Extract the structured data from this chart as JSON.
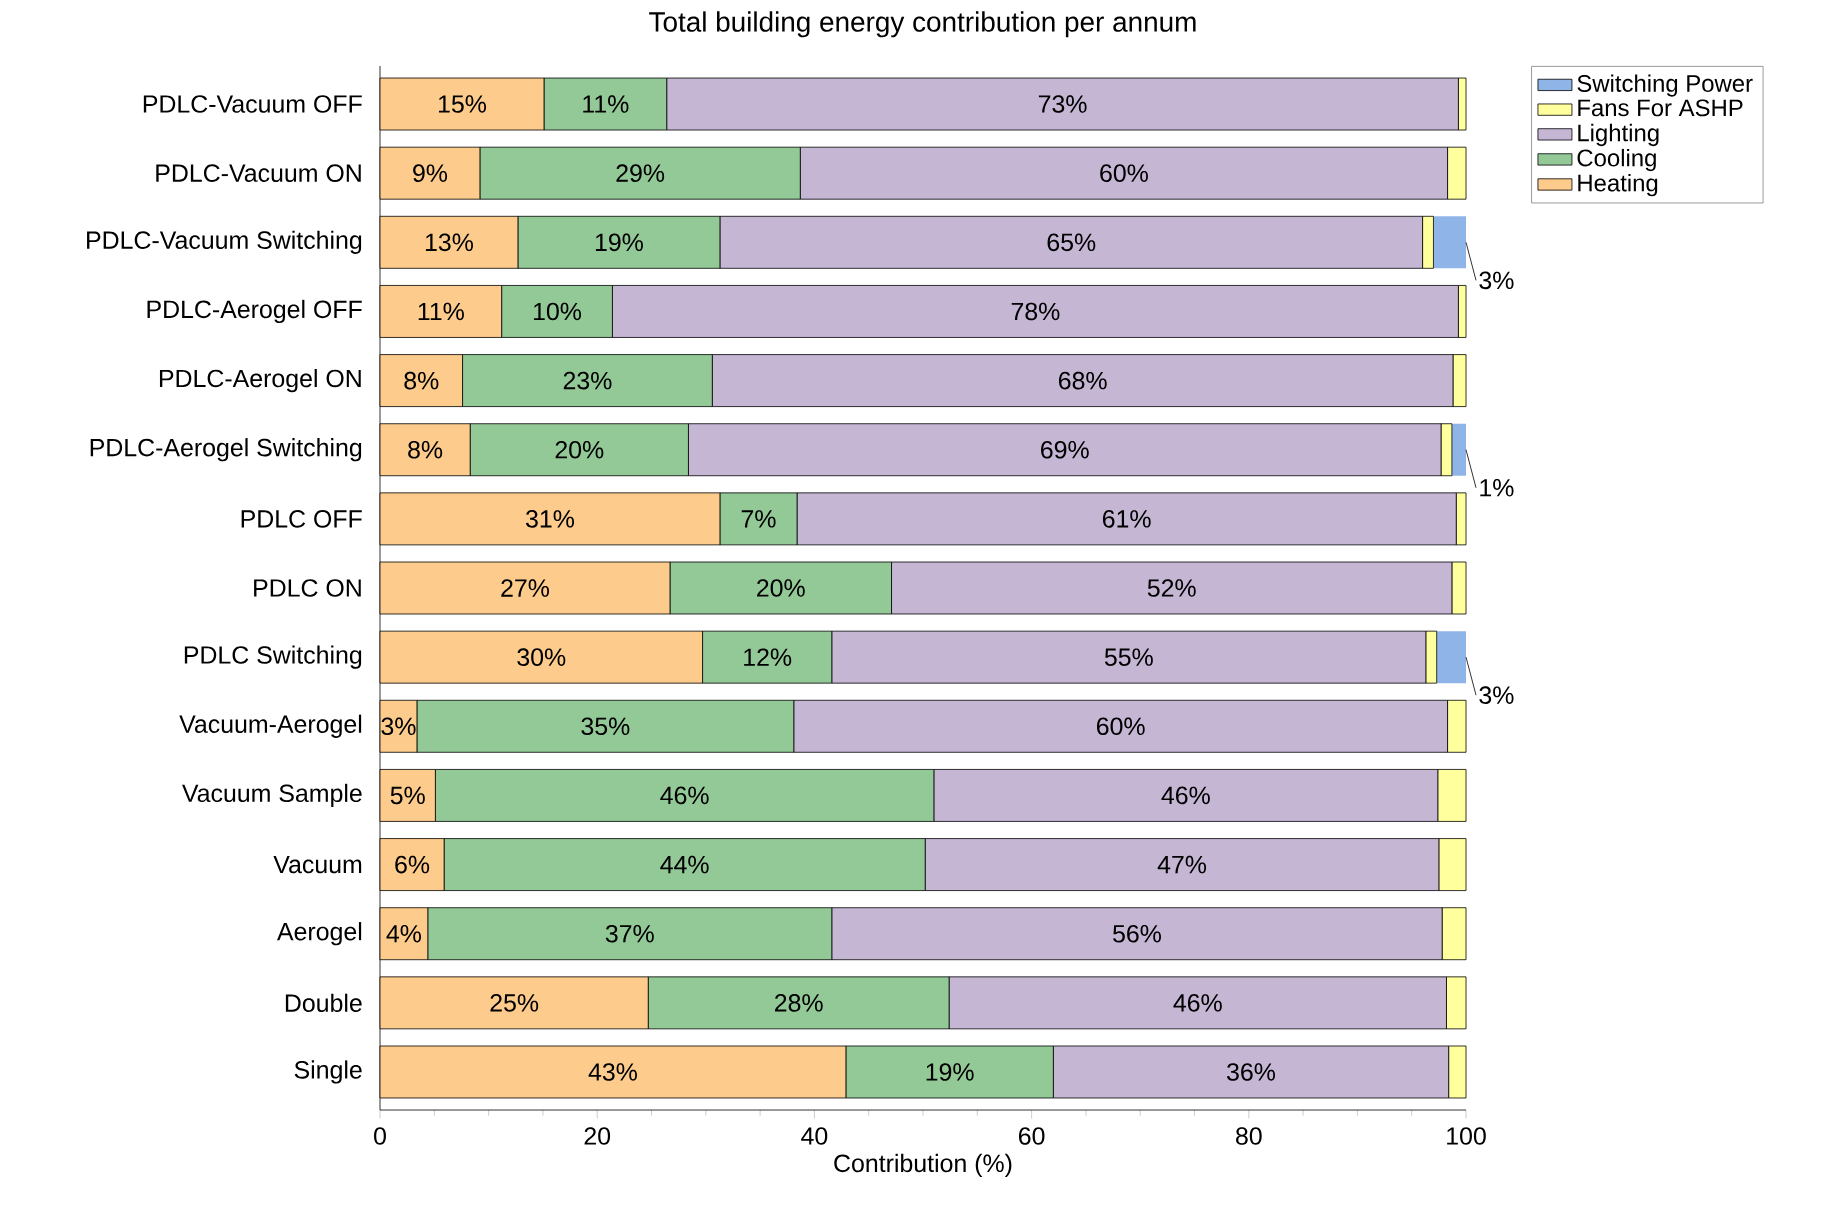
{
  "chart_data": {
    "type": "bar",
    "orientation": "horizontal",
    "stacked": true,
    "title": "Total building energy contribution per annum",
    "xlabel": "Contribution (%)",
    "categories": [
      "PDLC-Vacuum OFF",
      "PDLC-Vacuum ON",
      "PDLC-Vacuum Switching",
      "PDLC-Aerogel OFF",
      "PDLC-Aerogel ON",
      "PDLC-Aerogel Switching",
      "PDLC OFF",
      "PDLC ON",
      "PDLC Switching",
      "Vacuum-Aerogel",
      "Vacuum Sample",
      "Vacuum",
      "Aerogel",
      "Double",
      "Single"
    ],
    "series": [
      {
        "name": "Heating",
        "color": "#fdcb8c",
        "values": [
          15.1,
          9.2,
          12.7,
          11.2,
          7.6,
          8.3,
          31.3,
          26.7,
          29.7,
          3.4,
          5.1,
          5.9,
          4.4,
          24.7,
          42.9
        ],
        "value_labels": [
          "15%",
          "9%",
          "13%",
          "11%",
          "8%",
          "8%",
          "31%",
          "27%",
          "30%",
          "3%",
          "5%",
          "6%",
          "4%",
          "25%",
          "43%"
        ]
      },
      {
        "name": "Cooling",
        "color": "#93c897",
        "values": [
          11.3,
          29.5,
          18.6,
          10.2,
          23.0,
          20.1,
          7.1,
          20.4,
          11.9,
          34.7,
          45.9,
          44.3,
          37.2,
          27.7,
          19.1
        ],
        "value_labels": [
          "11%",
          "29%",
          "19%",
          "10%",
          "23%",
          "20%",
          "7%",
          "20%",
          "12%",
          "35%",
          "46%",
          "44%",
          "37%",
          "28%",
          "19%"
        ]
      },
      {
        "name": "Lighting",
        "color": "#c5b6d4",
        "values": [
          72.9,
          59.6,
          64.7,
          77.9,
          68.2,
          69.3,
          60.7,
          51.6,
          54.7,
          60.2,
          46.4,
          47.3,
          56.2,
          45.8,
          36.4
        ],
        "value_labels": [
          "73%",
          "60%",
          "65%",
          "78%",
          "68%",
          "69%",
          "61%",
          "52%",
          "55%",
          "60%",
          "46%",
          "47%",
          "56%",
          "46%",
          "36%"
        ]
      },
      {
        "name": "Fans For ASHP",
        "color": "#ffff9e",
        "values": [
          0.7,
          1.7,
          1.0,
          0.7,
          1.2,
          1.0,
          0.9,
          1.3,
          1.0,
          1.7,
          2.6,
          2.5,
          2.2,
          1.8,
          1.6
        ]
      },
      {
        "name": "Switching Power",
        "color": "#8fb4e8",
        "values": [
          null,
          null,
          3.0,
          null,
          null,
          1.3,
          null,
          null,
          2.7,
          null,
          null,
          null,
          null,
          null,
          null
        ],
        "value_labels": [
          null,
          null,
          "3%",
          null,
          null,
          "1%",
          null,
          null,
          "3%",
          null,
          null,
          null,
          null,
          null,
          null
        ]
      }
    ],
    "xlim": [
      0,
      100
    ],
    "xticks": [
      0,
      20,
      40,
      60,
      80,
      100
    ],
    "legend": "top right",
    "grid": false
  }
}
